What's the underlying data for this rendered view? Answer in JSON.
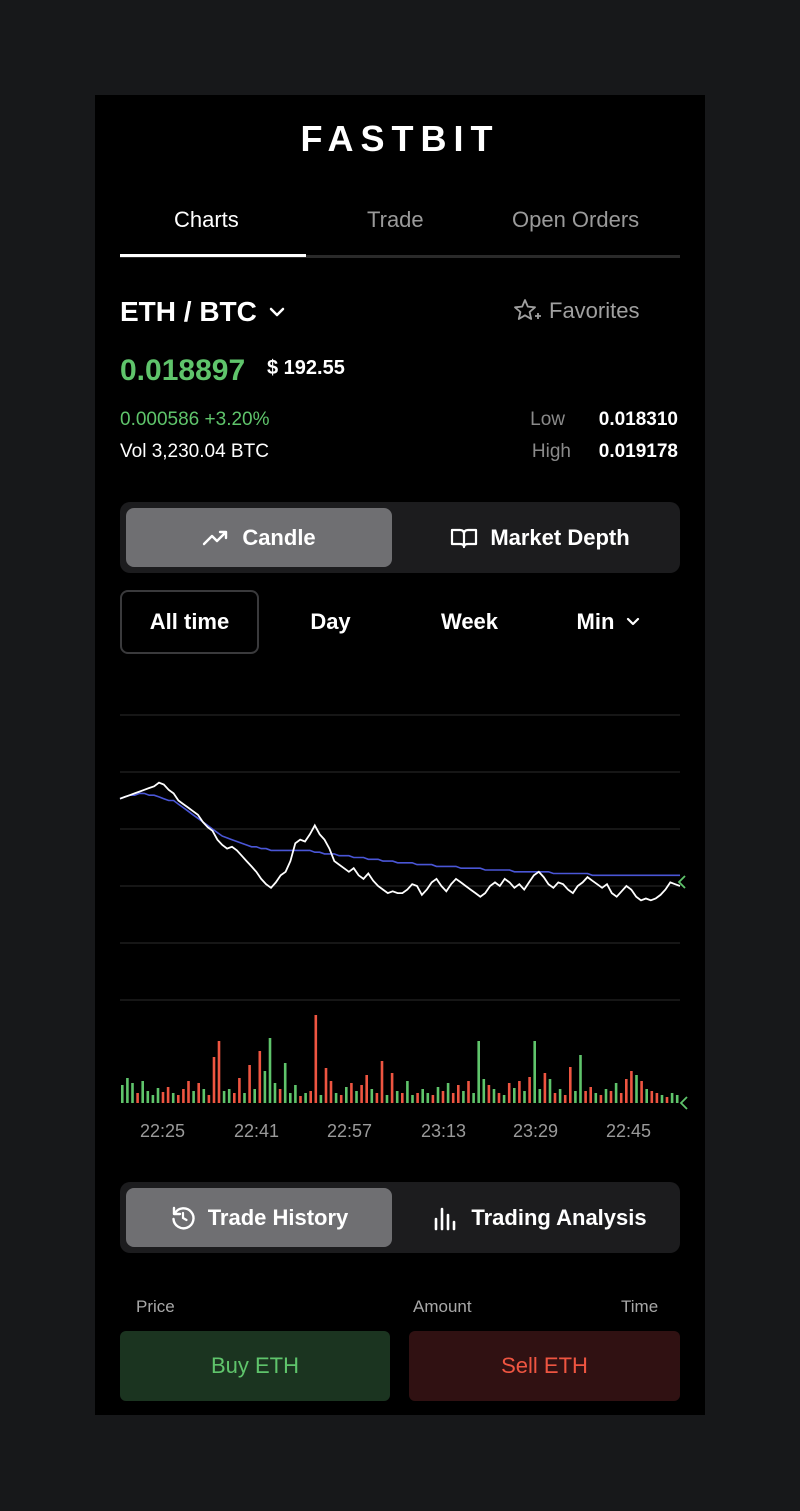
{
  "app": {
    "brand": "FASTBIT"
  },
  "tabs": [
    {
      "label": "Charts",
      "active": true
    },
    {
      "label": "Trade",
      "active": false
    },
    {
      "label": "Open Orders",
      "active": false
    }
  ],
  "market": {
    "pair": "ETH / BTC",
    "favorites_label": "Favorites",
    "price": "0.018897",
    "usd_price": "$ 192.55",
    "change": "0.000586 +3.20%",
    "volume": "Vol 3,230.04 BTC",
    "low_label": "Low",
    "low_value": "0.018310",
    "high_label": "High",
    "high_value": "0.019178"
  },
  "chart_mode": {
    "candle_label": "Candle",
    "depth_label": "Market Depth",
    "active": "Candle"
  },
  "ranges": [
    {
      "label": "All time",
      "active": true
    },
    {
      "label": "Day",
      "active": false
    },
    {
      "label": "Week",
      "active": false
    },
    {
      "label": "Min",
      "active": false,
      "dropdown": true
    }
  ],
  "colors": {
    "up": "#5fc46b",
    "down": "#ee5541",
    "price_line": "#ffffff",
    "average_line": "#4a56d6",
    "grid": "#2b2b2b"
  },
  "chart_data": {
    "type": "line",
    "x_tick_labels": [
      "22:25",
      "22:41",
      "22:57",
      "23:13",
      "23:29",
      "22:45"
    ],
    "price": [
      0.53,
      0.54,
      0.55,
      0.56,
      0.57,
      0.58,
      0.59,
      0.6,
      0.62,
      0.61,
      0.58,
      0.56,
      0.52,
      0.5,
      0.48,
      0.46,
      0.44,
      0.4,
      0.37,
      0.35,
      0.3,
      0.27,
      0.25,
      0.26,
      0.24,
      0.21,
      0.18,
      0.15,
      0.12,
      0.08,
      0.05,
      0.03,
      0.06,
      0.1,
      0.12,
      0.18,
      0.28,
      0.3,
      0.29,
      0.33,
      0.38,
      0.33,
      0.3,
      0.25,
      0.18,
      0.16,
      0.14,
      0.12,
      0.14,
      0.1,
      0.08,
      0.11,
      0.07,
      0.04,
      0.02,
      0.0,
      0.01,
      0.0,
      0.0,
      0.02,
      0.05,
      0.04,
      -0.01,
      0.02,
      0.06,
      0.08,
      0.04,
      0.01,
      0.05,
      0.08,
      0.06,
      0.04,
      0.02,
      0.0,
      -0.02,
      0.0,
      0.04,
      0.06,
      0.04,
      0.08,
      0.06,
      0.03,
      0.05,
      0.02,
      0.06,
      0.1,
      0.12,
      0.09,
      0.05,
      0.03,
      0.06,
      0.05,
      0.02,
      0.0,
      0.04,
      0.06,
      0.09,
      0.07,
      0.05,
      0.03,
      0.05,
      0.0,
      -0.02,
      0.01,
      0.04,
      0.02,
      -0.02,
      -0.04,
      -0.03,
      -0.04,
      -0.03,
      -0.01,
      0.02,
      0.06,
      0.05,
      0.04
    ],
    "average": [
      0.53,
      0.54,
      0.55,
      0.55,
      0.56,
      0.56,
      0.55,
      0.55,
      0.54,
      0.53,
      0.52,
      0.52,
      0.5,
      0.48,
      0.46,
      0.44,
      0.42,
      0.4,
      0.38,
      0.36,
      0.34,
      0.32,
      0.31,
      0.3,
      0.29,
      0.28,
      0.27,
      0.26,
      0.26,
      0.25,
      0.25,
      0.24,
      0.24,
      0.24,
      0.24,
      0.24,
      0.24,
      0.24,
      0.24,
      0.24,
      0.23,
      0.23,
      0.22,
      0.22,
      0.22,
      0.21,
      0.21,
      0.21,
      0.2,
      0.2,
      0.2,
      0.19,
      0.19,
      0.19,
      0.18,
      0.18,
      0.18,
      0.17,
      0.17,
      0.17,
      0.17,
      0.16,
      0.16,
      0.16,
      0.16,
      0.15,
      0.15,
      0.15,
      0.15,
      0.15,
      0.14,
      0.14,
      0.14,
      0.14,
      0.14,
      0.13,
      0.13,
      0.13,
      0.13,
      0.13,
      0.13,
      0.12,
      0.12,
      0.12,
      0.12,
      0.12,
      0.12,
      0.12,
      0.12,
      0.11,
      0.11,
      0.11,
      0.11,
      0.11,
      0.11,
      0.11,
      0.11,
      0.1,
      0.1,
      0.1,
      0.1,
      0.1,
      0.1,
      0.1,
      0.1,
      0.1,
      0.1,
      0.1,
      0.1,
      0.1,
      0.1,
      0.1,
      0.1,
      0.1,
      0.1,
      0.1
    ],
    "y_range": [
      -0.6,
      1.0
    ],
    "volume": [
      {
        "v": 0.18,
        "s": "up"
      },
      {
        "v": 0.25,
        "s": "up"
      },
      {
        "v": 0.2,
        "s": "up"
      },
      {
        "v": 0.1,
        "s": "down"
      },
      {
        "v": 0.22,
        "s": "up"
      },
      {
        "v": 0.12,
        "s": "up"
      },
      {
        "v": 0.08,
        "s": "up"
      },
      {
        "v": 0.15,
        "s": "up"
      },
      {
        "v": 0.11,
        "s": "down"
      },
      {
        "v": 0.16,
        "s": "down"
      },
      {
        "v": 0.1,
        "s": "up"
      },
      {
        "v": 0.08,
        "s": "down"
      },
      {
        "v": 0.14,
        "s": "down"
      },
      {
        "v": 0.22,
        "s": "down"
      },
      {
        "v": 0.12,
        "s": "up"
      },
      {
        "v": 0.2,
        "s": "down"
      },
      {
        "v": 0.14,
        "s": "up"
      },
      {
        "v": 0.08,
        "s": "down"
      },
      {
        "v": 0.46,
        "s": "down"
      },
      {
        "v": 0.62,
        "s": "down"
      },
      {
        "v": 0.12,
        "s": "up"
      },
      {
        "v": 0.14,
        "s": "up"
      },
      {
        "v": 0.1,
        "s": "down"
      },
      {
        "v": 0.25,
        "s": "down"
      },
      {
        "v": 0.1,
        "s": "up"
      },
      {
        "v": 0.38,
        "s": "down"
      },
      {
        "v": 0.14,
        "s": "up"
      },
      {
        "v": 0.52,
        "s": "down"
      },
      {
        "v": 0.32,
        "s": "up"
      },
      {
        "v": 0.65,
        "s": "up"
      },
      {
        "v": 0.2,
        "s": "up"
      },
      {
        "v": 0.14,
        "s": "down"
      },
      {
        "v": 0.4,
        "s": "up"
      },
      {
        "v": 0.1,
        "s": "up"
      },
      {
        "v": 0.18,
        "s": "up"
      },
      {
        "v": 0.07,
        "s": "down"
      },
      {
        "v": 0.1,
        "s": "up"
      },
      {
        "v": 0.12,
        "s": "down"
      },
      {
        "v": 0.88,
        "s": "down"
      },
      {
        "v": 0.08,
        "s": "up"
      },
      {
        "v": 0.35,
        "s": "down"
      },
      {
        "v": 0.22,
        "s": "down"
      },
      {
        "v": 0.1,
        "s": "up"
      },
      {
        "v": 0.08,
        "s": "down"
      },
      {
        "v": 0.16,
        "s": "up"
      },
      {
        "v": 0.2,
        "s": "down"
      },
      {
        "v": 0.12,
        "s": "up"
      },
      {
        "v": 0.18,
        "s": "down"
      },
      {
        "v": 0.28,
        "s": "down"
      },
      {
        "v": 0.14,
        "s": "up"
      },
      {
        "v": 0.1,
        "s": "down"
      },
      {
        "v": 0.42,
        "s": "down"
      },
      {
        "v": 0.08,
        "s": "up"
      },
      {
        "v": 0.3,
        "s": "down"
      },
      {
        "v": 0.12,
        "s": "up"
      },
      {
        "v": 0.1,
        "s": "down"
      },
      {
        "v": 0.22,
        "s": "up"
      },
      {
        "v": 0.08,
        "s": "up"
      },
      {
        "v": 0.1,
        "s": "down"
      },
      {
        "v": 0.14,
        "s": "up"
      },
      {
        "v": 0.1,
        "s": "up"
      },
      {
        "v": 0.08,
        "s": "down"
      },
      {
        "v": 0.16,
        "s": "up"
      },
      {
        "v": 0.12,
        "s": "down"
      },
      {
        "v": 0.2,
        "s": "up"
      },
      {
        "v": 0.1,
        "s": "down"
      },
      {
        "v": 0.18,
        "s": "down"
      },
      {
        "v": 0.12,
        "s": "up"
      },
      {
        "v": 0.22,
        "s": "down"
      },
      {
        "v": 0.1,
        "s": "up"
      },
      {
        "v": 0.62,
        "s": "up"
      },
      {
        "v": 0.24,
        "s": "up"
      },
      {
        "v": 0.18,
        "s": "down"
      },
      {
        "v": 0.14,
        "s": "up"
      },
      {
        "v": 0.1,
        "s": "down"
      },
      {
        "v": 0.08,
        "s": "up"
      },
      {
        "v": 0.2,
        "s": "down"
      },
      {
        "v": 0.15,
        "s": "up"
      },
      {
        "v": 0.22,
        "s": "down"
      },
      {
        "v": 0.12,
        "s": "up"
      },
      {
        "v": 0.26,
        "s": "down"
      },
      {
        "v": 0.62,
        "s": "up"
      },
      {
        "v": 0.14,
        "s": "up"
      },
      {
        "v": 0.3,
        "s": "down"
      },
      {
        "v": 0.24,
        "s": "up"
      },
      {
        "v": 0.1,
        "s": "down"
      },
      {
        "v": 0.14,
        "s": "up"
      },
      {
        "v": 0.08,
        "s": "down"
      },
      {
        "v": 0.36,
        "s": "down"
      },
      {
        "v": 0.12,
        "s": "up"
      },
      {
        "v": 0.48,
        "s": "up"
      },
      {
        "v": 0.12,
        "s": "down"
      },
      {
        "v": 0.16,
        "s": "down"
      },
      {
        "v": 0.1,
        "s": "up"
      },
      {
        "v": 0.08,
        "s": "down"
      },
      {
        "v": 0.14,
        "s": "up"
      },
      {
        "v": 0.12,
        "s": "down"
      },
      {
        "v": 0.2,
        "s": "up"
      },
      {
        "v": 0.1,
        "s": "down"
      },
      {
        "v": 0.24,
        "s": "down"
      },
      {
        "v": 0.32,
        "s": "down"
      },
      {
        "v": 0.28,
        "s": "up"
      },
      {
        "v": 0.22,
        "s": "down"
      },
      {
        "v": 0.14,
        "s": "up"
      },
      {
        "v": 0.12,
        "s": "down"
      },
      {
        "v": 0.1,
        "s": "down"
      },
      {
        "v": 0.08,
        "s": "up"
      },
      {
        "v": 0.06,
        "s": "down"
      },
      {
        "v": 0.1,
        "s": "up"
      },
      {
        "v": 0.08,
        "s": "up"
      }
    ]
  },
  "bottom_mode": {
    "history_label": "Trade History",
    "analysis_label": "Trading Analysis",
    "active": "Trade History"
  },
  "columns": {
    "price": "Price",
    "amount": "Amount",
    "time": "Time"
  },
  "actions": {
    "buy": "Buy ETH",
    "sell": "Sell ETH"
  }
}
